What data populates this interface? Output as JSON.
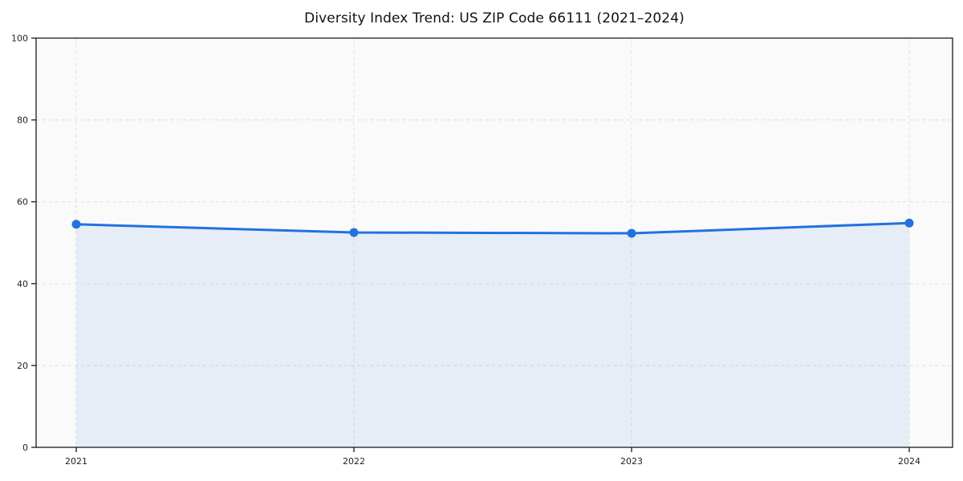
{
  "chart_data": {
    "type": "area",
    "title": "Diversity Index Trend: US ZIP Code 66111 (2021–2024)",
    "categories": [
      "2021",
      "2022",
      "2023",
      "2024"
    ],
    "series": [
      {
        "name": "Diversity Index",
        "values": [
          54.5,
          52.5,
          52.3,
          54.8
        ]
      }
    ],
    "xlabel": "",
    "ylabel": "",
    "ylim": [
      0,
      100
    ],
    "yticks": [
      0,
      20,
      40,
      60,
      80,
      100
    ],
    "grid": true,
    "grid_style": "dashed",
    "legend_position": "none",
    "colors": {
      "line": "#2271e0",
      "marker": "#2271e0",
      "fill": "rgba(34,113,224,0.09)",
      "plot_bg": "#fafafa",
      "grid": "#e3e3e3",
      "spine": "#1a1a1a",
      "tick_text": "#1f1f1f"
    }
  }
}
